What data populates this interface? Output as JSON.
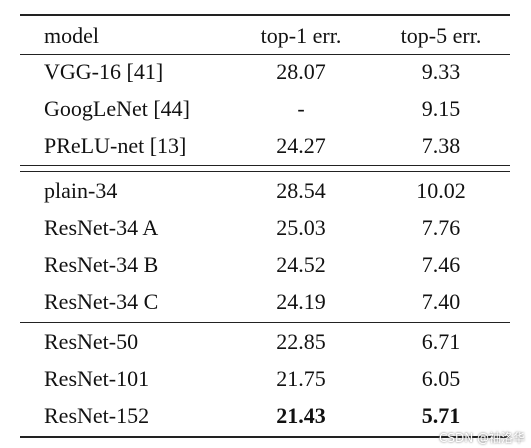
{
  "table": {
    "header": [
      "model",
      "top-1 err.",
      "top-5 err."
    ],
    "groups": [
      [
        [
          "VGG-16 [41]",
          "28.07",
          "9.33"
        ],
        [
          "GoogLeNet [44]",
          "-",
          "9.15"
        ],
        [
          "PReLU-net [13]",
          "24.27",
          "7.38"
        ]
      ],
      [
        [
          "plain-34",
          "28.54",
          "10.02"
        ],
        [
          "ResNet-34 A",
          "25.03",
          "7.76"
        ],
        [
          "ResNet-34 B",
          "24.52",
          "7.46"
        ],
        [
          "ResNet-34 C",
          "24.19",
          "7.40"
        ]
      ],
      [
        [
          "ResNet-50",
          "22.85",
          "6.71"
        ],
        [
          "ResNet-101",
          "21.75",
          "6.05"
        ],
        [
          "ResNet-152",
          "21.43",
          "5.71"
        ]
      ]
    ]
  },
  "watermark": "CSDN @袖洛华"
}
